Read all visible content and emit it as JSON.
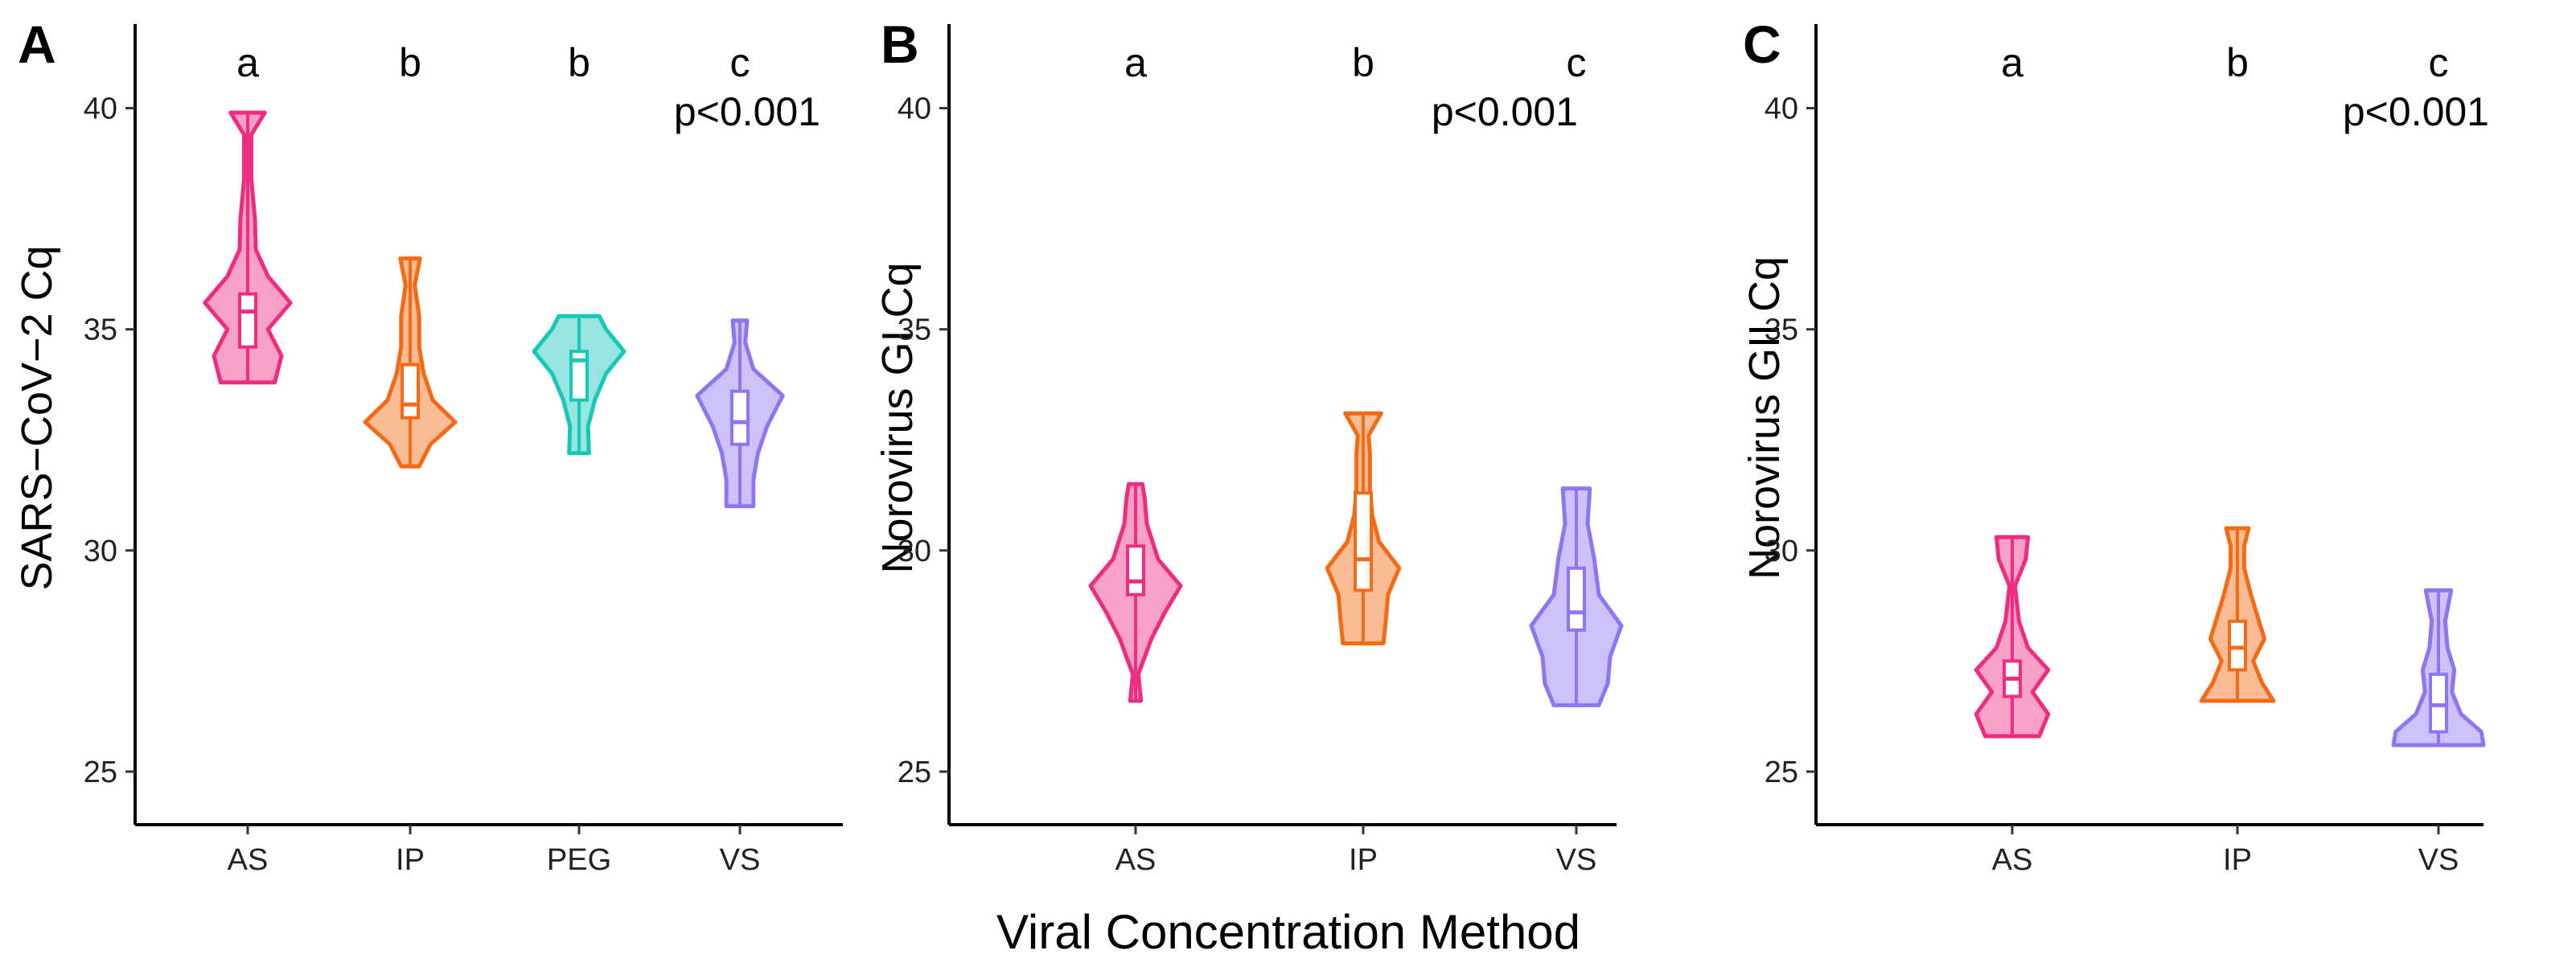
{
  "x_axis_title": "Viral Concentration Method",
  "colors": {
    "AS": "#ef2d80",
    "IP": "#f56a14",
    "PEG": "#17c7b7",
    "VS": "#8f75f0"
  },
  "chart_data": [
    {
      "type": "violin",
      "panel": "A",
      "ylabel": "SARS−CoV−2 Cq",
      "ylim": [
        23.8,
        41.9
      ],
      "yticks": [
        25,
        30,
        35,
        40
      ],
      "categories": [
        "AS",
        "IP",
        "PEG",
        "VS"
      ],
      "significance_letters": [
        "a",
        "b",
        "b",
        "c"
      ],
      "p_value": "p<0.001",
      "groups": [
        {
          "name": "AS",
          "min": 33.8,
          "max": 39.9,
          "q1": 34.6,
          "median": 35.4,
          "q3": 35.8,
          "shape": [
            [
              33.8,
              0.6
            ],
            [
              34.4,
              0.75
            ],
            [
              35.0,
              0.45
            ],
            [
              35.6,
              0.95
            ],
            [
              36.2,
              0.45
            ],
            [
              36.8,
              0.18
            ],
            [
              37.5,
              0.16
            ],
            [
              38.4,
              0.08
            ],
            [
              39.4,
              0.08
            ],
            [
              39.9,
              0.38
            ]
          ]
        },
        {
          "name": "IP",
          "min": 31.9,
          "max": 36.6,
          "q1": 33.0,
          "median": 33.3,
          "q3": 34.2,
          "shape": [
            [
              31.9,
              0.2
            ],
            [
              32.4,
              0.45
            ],
            [
              32.9,
              1.0
            ],
            [
              33.4,
              0.5
            ],
            [
              34.0,
              0.3
            ],
            [
              34.6,
              0.2
            ],
            [
              35.3,
              0.2
            ],
            [
              36.0,
              0.1
            ],
            [
              36.6,
              0.22
            ]
          ]
        },
        {
          "name": "PEG",
          "min": 32.2,
          "max": 35.3,
          "q1": 33.4,
          "median": 34.3,
          "q3": 34.5,
          "shape": [
            [
              32.2,
              0.22
            ],
            [
              32.8,
              0.2
            ],
            [
              33.4,
              0.35
            ],
            [
              34.0,
              0.6
            ],
            [
              34.5,
              1.0
            ],
            [
              35.0,
              0.6
            ],
            [
              35.3,
              0.45
            ]
          ]
        },
        {
          "name": "VS",
          "min": 31.0,
          "max": 35.2,
          "q1": 32.4,
          "median": 32.9,
          "q3": 33.6,
          "shape": [
            [
              31.0,
              0.3
            ],
            [
              31.6,
              0.3
            ],
            [
              32.2,
              0.4
            ],
            [
              32.8,
              0.6
            ],
            [
              33.5,
              0.95
            ],
            [
              34.1,
              0.3
            ],
            [
              34.7,
              0.12
            ],
            [
              35.2,
              0.16
            ]
          ]
        }
      ]
    },
    {
      "type": "violin",
      "panel": "B",
      "ylabel": "Norovirus GI Cq",
      "ylim": [
        23.8,
        41.9
      ],
      "yticks": [
        25,
        30,
        35,
        40
      ],
      "categories": [
        "AS",
        "IP",
        "VS"
      ],
      "significance_letters": [
        "a",
        "b",
        "c"
      ],
      "p_value": "p<0.001",
      "groups": [
        {
          "name": "AS",
          "min": 26.6,
          "max": 31.5,
          "q1": 29.0,
          "median": 29.3,
          "q3": 30.1,
          "shape": [
            [
              26.6,
              0.12
            ],
            [
              27.2,
              0.06
            ],
            [
              28.0,
              0.35
            ],
            [
              28.6,
              0.65
            ],
            [
              29.2,
              1.0
            ],
            [
              29.8,
              0.5
            ],
            [
              30.6,
              0.25
            ],
            [
              31.2,
              0.2
            ],
            [
              31.5,
              0.15
            ]
          ]
        },
        {
          "name": "IP",
          "min": 27.9,
          "max": 33.1,
          "q1": 29.1,
          "median": 29.8,
          "q3": 31.3,
          "shape": [
            [
              27.9,
              0.45
            ],
            [
              28.4,
              0.5
            ],
            [
              29.0,
              0.55
            ],
            [
              29.6,
              0.8
            ],
            [
              30.2,
              0.35
            ],
            [
              30.8,
              0.2
            ],
            [
              31.4,
              0.15
            ],
            [
              32.2,
              0.15
            ],
            [
              32.6,
              0.12
            ],
            [
              33.1,
              0.4
            ]
          ]
        },
        {
          "name": "VS",
          "min": 26.5,
          "max": 31.4,
          "q1": 28.2,
          "median": 28.6,
          "q3": 29.6,
          "shape": [
            [
              26.5,
              0.5
            ],
            [
              27.0,
              0.7
            ],
            [
              27.6,
              0.75
            ],
            [
              28.3,
              1.0
            ],
            [
              29.0,
              0.5
            ],
            [
              29.8,
              0.4
            ],
            [
              30.6,
              0.25
            ],
            [
              31.4,
              0.3
            ]
          ]
        }
      ]
    },
    {
      "type": "violin",
      "panel": "C",
      "ylabel": "Norovirus GII Cq",
      "ylim": [
        23.8,
        41.9
      ],
      "yticks": [
        25,
        30,
        35,
        40
      ],
      "categories": [
        "AS",
        "IP",
        "VS"
      ],
      "significance_letters": [
        "a",
        "b",
        "c"
      ],
      "p_value": "p<0.001",
      "groups": [
        {
          "name": "AS",
          "min": 25.8,
          "max": 30.3,
          "q1": 26.7,
          "median": 27.1,
          "q3": 27.5,
          "shape": [
            [
              25.8,
              0.6
            ],
            [
              26.3,
              0.8
            ],
            [
              26.8,
              0.45
            ],
            [
              27.3,
              0.8
            ],
            [
              27.8,
              0.35
            ],
            [
              28.4,
              0.15
            ],
            [
              29.2,
              0.06
            ],
            [
              29.8,
              0.3
            ],
            [
              30.3,
              0.35
            ]
          ]
        },
        {
          "name": "IP",
          "min": 26.6,
          "max": 30.5,
          "q1": 27.3,
          "median": 27.8,
          "q3": 28.4,
          "shape": [
            [
              26.6,
              0.8
            ],
            [
              27.0,
              0.55
            ],
            [
              27.5,
              0.35
            ],
            [
              28.0,
              0.6
            ],
            [
              28.5,
              0.45
            ],
            [
              29.0,
              0.3
            ],
            [
              29.6,
              0.15
            ],
            [
              30.1,
              0.15
            ],
            [
              30.5,
              0.25
            ]
          ]
        },
        {
          "name": "VS",
          "min": 25.6,
          "max": 29.1,
          "q1": 25.9,
          "median": 26.5,
          "q3": 27.2,
          "shape": [
            [
              25.6,
              1.0
            ],
            [
              25.9,
              0.95
            ],
            [
              26.3,
              0.5
            ],
            [
              26.8,
              0.3
            ],
            [
              27.3,
              0.35
            ],
            [
              27.8,
              0.2
            ],
            [
              28.4,
              0.15
            ],
            [
              29.1,
              0.28
            ]
          ]
        }
      ]
    }
  ]
}
